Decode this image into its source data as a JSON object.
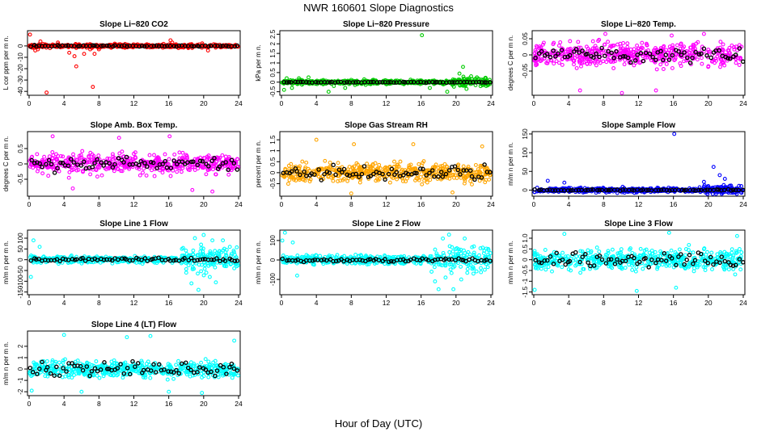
{
  "title": "NWR  160601  Slope Diagnostics",
  "xlabel": "Hour of Day (UTC)",
  "colors": {
    "co2": "#ff0000",
    "pressure": "#00cc00",
    "temp": "#ff00ff",
    "rh": "#ffa500",
    "sample": "#0000ff",
    "line": "#00ffff",
    "mean": "#000000"
  },
  "chart_data": [
    {
      "id": "co2",
      "type": "scatter",
      "title": "Slope Li−820 CO2",
      "ylabel": "L cor ppm per m n.",
      "xlim": [
        0,
        24
      ],
      "xticks": [
        "0",
        "4",
        "8",
        "12",
        "16",
        "20",
        "24"
      ],
      "ylim": [
        -42,
        12
      ],
      "yticks": [
        0,
        -10,
        -20,
        -30,
        -40
      ],
      "ytick_labels": [
        "0",
        "-10",
        "-20",
        "-30",
        "-40"
      ],
      "color": "co2",
      "spread": 1.5,
      "mean_spread": 0.6,
      "outliers": [
        [
          0.1,
          10
        ],
        [
          0.7,
          -4
        ],
        [
          1.0,
          -3
        ],
        [
          1.3,
          4
        ],
        [
          2.0,
          -41
        ],
        [
          3.3,
          3
        ],
        [
          4.6,
          -6
        ],
        [
          5.2,
          -9
        ],
        [
          5.4,
          -18
        ],
        [
          6.3,
          -7
        ],
        [
          7.0,
          -3
        ],
        [
          7.3,
          -36
        ],
        [
          7.5,
          -7
        ],
        [
          8.0,
          -3
        ],
        [
          9.8,
          2
        ],
        [
          16.2,
          5
        ],
        [
          16.4,
          3
        ],
        [
          17.8,
          1
        ],
        [
          20.5,
          -4
        ]
      ]
    },
    {
      "id": "pressure",
      "type": "scatter",
      "title": "Slope Li−820 Pressure",
      "ylabel": "kPa per m n.",
      "xlim": [
        0,
        24
      ],
      "xticks": [
        "0",
        "4",
        "8",
        "12",
        "16",
        "20",
        "24"
      ],
      "ylim": [
        -0.6,
        2.6
      ],
      "yticks": [
        2.5,
        2,
        1.5,
        1,
        0.5,
        0,
        -0.5
      ],
      "ytick_labels": [
        "2.5",
        "2",
        "1.5",
        "1",
        "0.5",
        "0",
        "-0.5"
      ],
      "color": "pressure",
      "spread": 0.1,
      "mean_spread": 0.02,
      "outliers": [
        [
          0.3,
          -0.4
        ],
        [
          0.6,
          0.2
        ],
        [
          1.2,
          -0.3
        ],
        [
          2.0,
          0.2
        ],
        [
          3.1,
          0.25
        ],
        [
          4.1,
          -0.1
        ],
        [
          5.4,
          -0.5
        ],
        [
          6.0,
          -0.2
        ],
        [
          7.3,
          -0.3
        ],
        [
          16.1,
          2.45
        ],
        [
          17.0,
          -0.3
        ],
        [
          19.0,
          -0.5
        ],
        [
          20.4,
          0.45
        ],
        [
          20.8,
          0.8
        ],
        [
          21.2,
          -0.35
        ],
        [
          22.4,
          0.25
        ],
        [
          23.4,
          0.1
        ]
      ]
    },
    {
      "id": "temp",
      "type": "scatter",
      "title": "Slope Li−820 Temp.",
      "ylabel": "degrees C per m n.",
      "xlim": [
        0,
        24
      ],
      "xticks": [
        "0",
        "4",
        "8",
        "12",
        "16",
        "20",
        "24"
      ],
      "ylim": [
        -0.12,
        0.07
      ],
      "yticks": [
        0.05,
        0,
        -0.05
      ],
      "ytick_labels": [
        "0.05",
        "0",
        "-0.05"
      ],
      "color": "temp",
      "spread": 0.035,
      "mean_spread": 0.02,
      "outliers": [
        [
          5.3,
          -0.11
        ],
        [
          8.2,
          0.065
        ],
        [
          10.1,
          -0.12
        ],
        [
          14.0,
          -0.11
        ],
        [
          15.8,
          0.06
        ],
        [
          19.5,
          0.065
        ]
      ]
    },
    {
      "id": "box",
      "type": "scatter",
      "title": "Slope Amb. Box Temp.",
      "ylabel": "degrees C per m n.",
      "xlim": [
        0,
        24
      ],
      "xticks": [
        "0",
        "4",
        "8",
        "12",
        "16",
        "20",
        "24"
      ],
      "ylim": [
        -1.0,
        1.0
      ],
      "yticks": [
        0.5,
        0,
        -0.5
      ],
      "ytick_labels": [
        "0.5",
        "0",
        "-0.5"
      ],
      "color": "temp",
      "spread": 0.3,
      "mean_spread": 0.2,
      "outliers": [
        [
          2.7,
          0.9
        ],
        [
          5.0,
          -0.8
        ],
        [
          10.3,
          0.85
        ],
        [
          16.1,
          0.9
        ],
        [
          18.7,
          -0.85
        ],
        [
          21.0,
          -0.9
        ]
      ]
    },
    {
      "id": "rh",
      "type": "scatter",
      "title": "Slope Gas Stream RH",
      "ylabel": "percent per m n.",
      "xlim": [
        0,
        24
      ],
      "xticks": [
        "0",
        "4",
        "8",
        "12",
        "16",
        "20",
        "24"
      ],
      "ylim": [
        -1.0,
        1.8
      ],
      "yticks": [
        1.5,
        1,
        0.5,
        0,
        -0.5
      ],
      "ytick_labels": [
        "1.5",
        "1",
        "0.5",
        "0",
        "-0.5"
      ],
      "color": "rh",
      "spread": 0.4,
      "mean_spread": 0.3,
      "outliers": [
        [
          4.0,
          1.5
        ],
        [
          8.3,
          1.3
        ],
        [
          8.0,
          -0.95
        ],
        [
          15.1,
          1.3
        ],
        [
          19.6,
          -0.9
        ],
        [
          23.0,
          1.2
        ]
      ]
    },
    {
      "id": "sample",
      "type": "scatter",
      "title": "Slope Sample Flow",
      "ylabel": "m/m n per m n.",
      "xlim": [
        0,
        24
      ],
      "xticks": [
        "0",
        "4",
        "8",
        "12",
        "16",
        "20",
        "24"
      ],
      "ylim": [
        -12,
        152
      ],
      "yticks": [
        150,
        100,
        50,
        0
      ],
      "ytick_labels": [
        "150",
        "100",
        "50",
        "0"
      ],
      "color": "sample",
      "spread": 6,
      "mean_spread": 1.5,
      "outliers": [
        [
          16.1,
          150
        ],
        [
          20.6,
          62
        ],
        [
          21.3,
          40
        ],
        [
          21.9,
          30
        ],
        [
          1.6,
          25
        ],
        [
          3.5,
          20
        ],
        [
          19.5,
          22
        ]
      ]
    },
    {
      "id": "line1",
      "type": "scatter",
      "title": "Slope Line 1 Flow",
      "ylabel": "m/m n per m n.",
      "xlim": [
        0,
        24
      ],
      "xticks": [
        "0",
        "4",
        "8",
        "12",
        "16",
        "20",
        "24"
      ],
      "ylim": [
        -155,
        130
      ],
      "yticks": [
        100,
        50,
        0,
        -50,
        -100,
        -150
      ],
      "ytick_labels": [
        "100",
        "50",
        "0",
        "-50",
        "-100",
        "-150"
      ],
      "color": "line",
      "spread": 15,
      "mean_spread": 8,
      "outliers": [
        [
          0.2,
          -80
        ],
        [
          0.5,
          90
        ],
        [
          1.2,
          60
        ],
        [
          17.5,
          50
        ],
        [
          18.0,
          -60
        ],
        [
          18.6,
          -110
        ],
        [
          19.0,
          100
        ],
        [
          19.4,
          -140
        ],
        [
          19.7,
          70
        ],
        [
          20.0,
          115
        ],
        [
          20.3,
          -60
        ],
        [
          20.7,
          -80
        ],
        [
          21.0,
          90
        ],
        [
          21.4,
          -105
        ],
        [
          21.8,
          40
        ],
        [
          22.2,
          90
        ],
        [
          22.6,
          -30
        ],
        [
          23.0,
          60
        ],
        [
          23.5,
          -40
        ]
      ]
    },
    {
      "id": "line2",
      "type": "scatter",
      "title": "Slope Line 2 Flow",
      "ylabel": "m/m n per m n.",
      "xlim": [
        0,
        24
      ],
      "xticks": [
        "0",
        "4",
        "8",
        "12",
        "16",
        "20",
        "24"
      ],
      "ylim": [
        -170,
        145
      ],
      "yticks": [
        100,
        0,
        -100
      ],
      "ytick_labels": [
        "100",
        "0",
        "-100"
      ],
      "color": "line",
      "spread": 20,
      "mean_spread": 10,
      "outliers": [
        [
          0.1,
          100
        ],
        [
          0.4,
          140
        ],
        [
          1.3,
          90
        ],
        [
          1.8,
          -80
        ],
        [
          17.2,
          -60
        ],
        [
          17.6,
          -110
        ],
        [
          18.0,
          -150
        ],
        [
          18.5,
          110
        ],
        [
          18.8,
          -90
        ],
        [
          19.2,
          130
        ],
        [
          19.7,
          -150
        ],
        [
          20.1,
          60
        ],
        [
          20.6,
          -100
        ],
        [
          21.0,
          110
        ],
        [
          21.4,
          40
        ],
        [
          22.0,
          -70
        ],
        [
          22.8,
          60
        ]
      ]
    },
    {
      "id": "line3",
      "type": "scatter",
      "title": "Slope Line 3 Flow",
      "ylabel": "m/m n per m n.",
      "xlim": [
        0,
        24
      ],
      "xticks": [
        "0",
        "4",
        "8",
        "12",
        "16",
        "20",
        "24"
      ],
      "ylim": [
        -1.55,
        1.3
      ],
      "yticks": [
        1,
        0.5,
        0,
        -0.5,
        -1,
        -1.5
      ],
      "ytick_labels": [
        "1.0",
        "0.5",
        "0",
        "-0.5",
        "-1",
        "-1.5"
      ],
      "color": "line",
      "spread": 0.45,
      "mean_spread": 0.35,
      "outliers": [
        [
          0.1,
          -1.4
        ],
        [
          3.5,
          1.2
        ],
        [
          11.8,
          -1.45
        ],
        [
          15.5,
          1.25
        ],
        [
          16.3,
          -1.3
        ],
        [
          23.3,
          1.1
        ]
      ]
    },
    {
      "id": "line4",
      "type": "scatter",
      "title": "Slope Line 4 (LT) Flow",
      "ylabel": "m/m n per m n.",
      "xlim": [
        0,
        24
      ],
      "xticks": [
        "0",
        "4",
        "8",
        "12",
        "16",
        "20",
        "24"
      ],
      "ylim": [
        -2.2,
        3.2
      ],
      "yticks": [
        2,
        1,
        0,
        -1,
        -2
      ],
      "ytick_labels": [
        "2",
        "1",
        "0",
        "-1",
        "-2"
      ],
      "color": "line",
      "spread": 0.7,
      "mean_spread": 0.6,
      "outliers": [
        [
          4.0,
          3.0
        ],
        [
          6.0,
          -2.0
        ],
        [
          11.2,
          2.8
        ],
        [
          13.9,
          2.9
        ],
        [
          19.8,
          -2.1
        ],
        [
          23.5,
          2.5
        ],
        [
          0.3,
          -1.9
        ],
        [
          16.0,
          -2.0
        ]
      ]
    }
  ]
}
